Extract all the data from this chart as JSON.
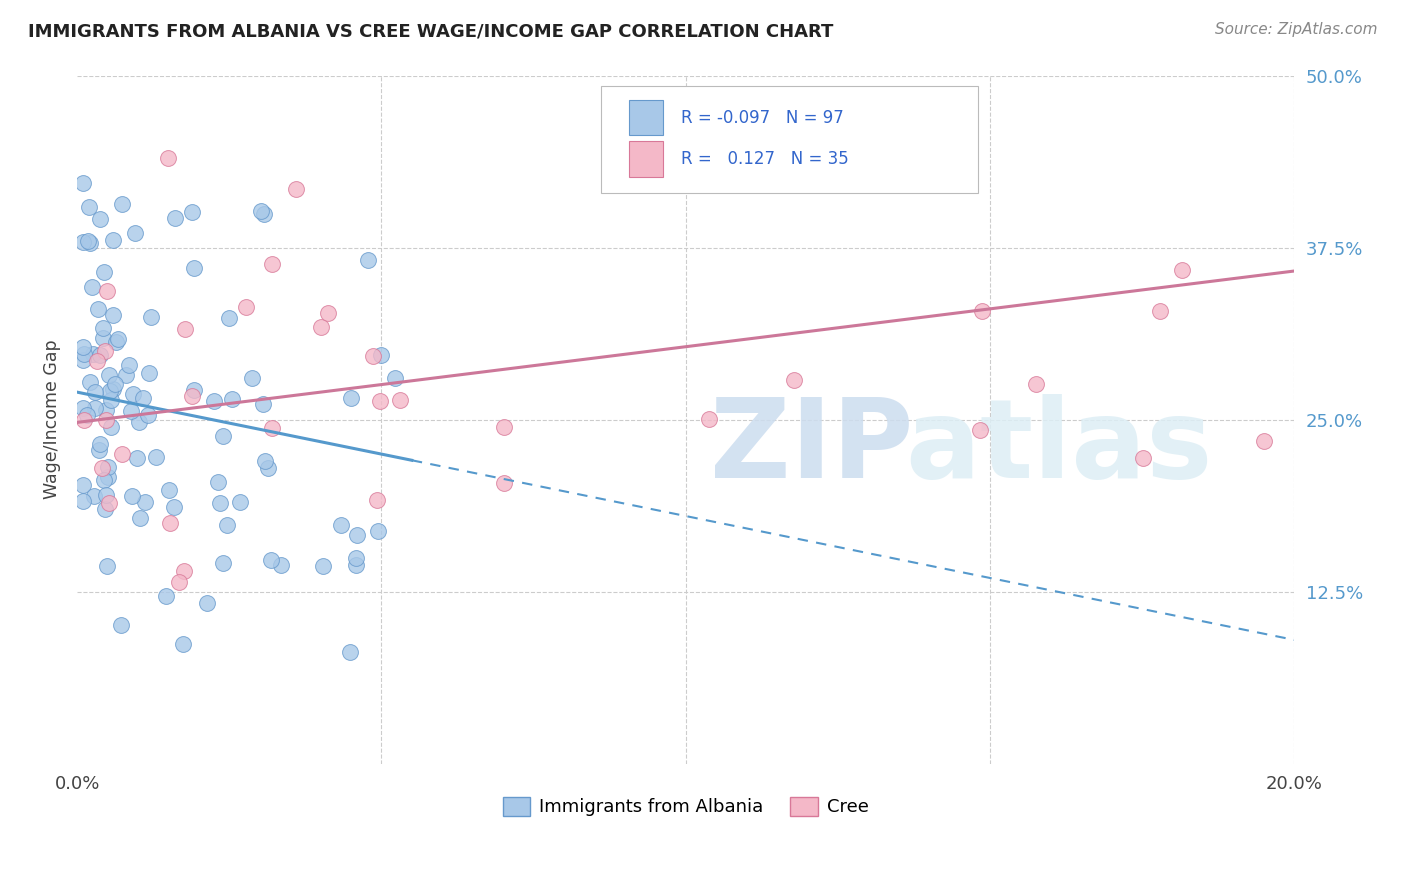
{
  "title": "IMMIGRANTS FROM ALBANIA VS CREE WAGE/INCOME GAP CORRELATION CHART",
  "source": "Source: ZipAtlas.com",
  "ylabel": "Wage/Income Gap",
  "xlim": [
    0.0,
    0.2
  ],
  "ylim": [
    0.0,
    0.5
  ],
  "ytick_labels": [
    "12.5%",
    "25.0%",
    "37.5%",
    "50.0%"
  ],
  "ytick_values": [
    0.125,
    0.25,
    0.375,
    0.5
  ],
  "albania_color": "#a8c8e8",
  "albania_edge_color": "#6699cc",
  "cree_color": "#f4b8c8",
  "cree_edge_color": "#d87898",
  "albania_R": -0.097,
  "albania_N": 97,
  "cree_R": 0.127,
  "cree_N": 35,
  "legend_label_albania": "Immigrants from Albania",
  "legend_label_cree": "Cree",
  "albania_line_color": "#5599cc",
  "cree_line_color": "#cc7799",
  "albania_line_solid_end": 0.055,
  "albania_intercept": 0.27,
  "albania_slope": -0.9,
  "cree_intercept": 0.248,
  "cree_slope": 0.55
}
